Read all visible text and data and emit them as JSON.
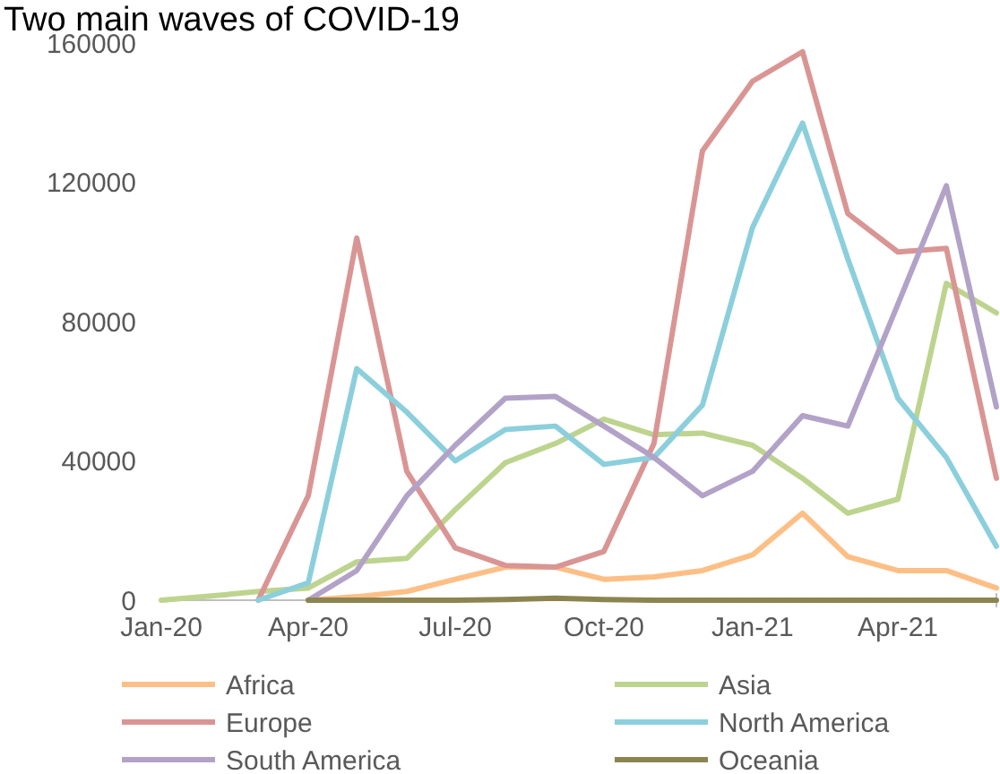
{
  "chart_data": {
    "type": "line",
    "title": "Two main waves of COVID-19",
    "x": [
      "2020-01",
      "2020-02",
      "2020-03",
      "2020-04",
      "2020-05",
      "2020-06",
      "2020-07",
      "2020-08",
      "2020-09",
      "2020-10",
      "2020-11",
      "2020-12",
      "2021-01",
      "2021-02",
      "2021-03",
      "2021-04",
      "2021-05",
      "2021-06"
    ],
    "xlim": [
      "2020-01",
      "2021-06"
    ],
    "xticks": [
      {
        "value": "2020-01",
        "label": "Jan-20"
      },
      {
        "value": "2020-04",
        "label": "Apr-20"
      },
      {
        "value": "2020-07",
        "label": "Jul-20"
      },
      {
        "value": "2020-10",
        "label": "Oct-20"
      },
      {
        "value": "2021-01",
        "label": "Jan-21"
      },
      {
        "value": "2021-04",
        "label": "Apr-21"
      }
    ],
    "ylim": [
      0,
      160000
    ],
    "yticks": [
      0,
      40000,
      80000,
      120000,
      160000
    ],
    "series": [
      {
        "name": "Africa",
        "color": "#fdbf86",
        "values": [
          null,
          null,
          null,
          0,
          1000,
          2500,
          6000,
          9500,
          9500,
          6000,
          6700,
          8500,
          13000,
          25000,
          12500,
          8500,
          8500,
          3500
        ]
      },
      {
        "name": "Asia",
        "color": "#bdd48e",
        "values": [
          0,
          1200,
          2500,
          3500,
          11000,
          12000,
          26000,
          39500,
          45000,
          52000,
          47500,
          48000,
          44500,
          35000,
          25000,
          29000,
          91000,
          82500
        ]
      },
      {
        "name": "Europe",
        "color": "#d99594",
        "values": [
          null,
          null,
          0,
          30000,
          104000,
          37000,
          15000,
          10000,
          9500,
          14000,
          45000,
          129000,
          149000,
          157500,
          111000,
          100000,
          101000,
          35000
        ]
      },
      {
        "name": "North America",
        "color": "#8ccfdc",
        "values": [
          null,
          null,
          0,
          5000,
          66500,
          54000,
          40000,
          49000,
          50000,
          39000,
          41000,
          56000,
          107000,
          137000,
          98000,
          58000,
          41000,
          15500
        ]
      },
      {
        "name": "South America",
        "color": "#b3a2c7",
        "values": [
          null,
          null,
          null,
          0,
          8500,
          30000,
          44500,
          58000,
          58500,
          50000,
          41000,
          30000,
          37000,
          53000,
          50000,
          85000,
          119000,
          55500
        ]
      },
      {
        "name": "Oceania",
        "color": "#8c8450",
        "values": [
          null,
          null,
          null,
          0,
          0,
          0,
          0,
          200,
          600,
          200,
          0,
          0,
          0,
          0,
          0,
          0,
          0,
          0
        ]
      }
    ],
    "legend": "bottom",
    "grid": false,
    "marker": "none",
    "line_style": "solid"
  }
}
